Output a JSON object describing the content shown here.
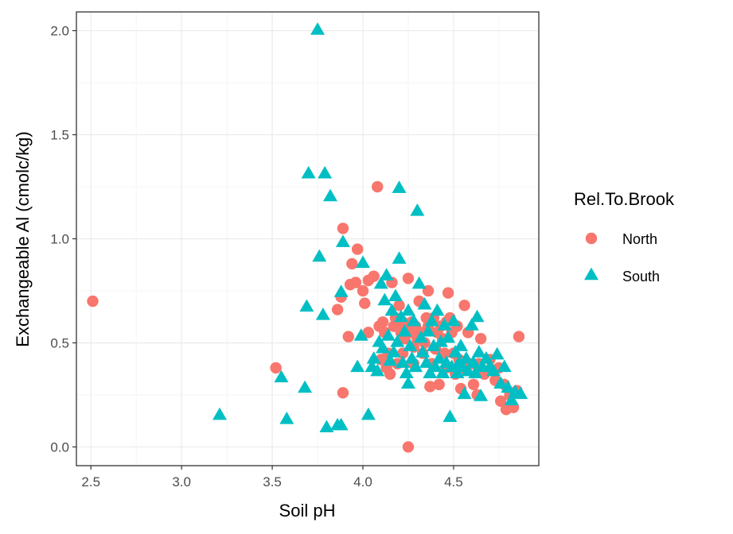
{
  "chart_data": {
    "type": "scatter",
    "title": "",
    "xlabel": "Soil pH",
    "ylabel": "Exchangeable Al (cmolc/kg)",
    "xlim": [
      2.42,
      4.97
    ],
    "ylim": [
      -0.09,
      2.09
    ],
    "xticks": [
      "2.5",
      "3.0",
      "3.5",
      "4.0",
      "4.5"
    ],
    "yticks": [
      "0.0",
      "0.5",
      "1.0",
      "1.5",
      "2.0"
    ],
    "grid": true,
    "legend": {
      "title": "Rel.To.Brook",
      "position": "right"
    },
    "series": [
      {
        "name": "North",
        "marker": "circle",
        "color": "#F8766D",
        "points": [
          [
            2.51,
            0.7
          ],
          [
            3.52,
            0.38
          ],
          [
            3.86,
            0.66
          ],
          [
            3.88,
            0.72
          ],
          [
            3.89,
            1.05
          ],
          [
            3.89,
            0.26
          ],
          [
            3.92,
            0.53
          ],
          [
            3.93,
            0.78
          ],
          [
            3.94,
            0.88
          ],
          [
            3.96,
            0.79
          ],
          [
            3.97,
            0.95
          ],
          [
            4.0,
            0.75
          ],
          [
            4.01,
            0.69
          ],
          [
            4.03,
            0.55
          ],
          [
            4.03,
            0.8
          ],
          [
            4.06,
            0.82
          ],
          [
            4.08,
            1.25
          ],
          [
            4.09,
            0.58
          ],
          [
            4.1,
            0.42
          ],
          [
            4.11,
            0.6
          ],
          [
            4.12,
            0.55
          ],
          [
            4.13,
            0.38
          ],
          [
            4.14,
            0.45
          ],
          [
            4.15,
            0.35
          ],
          [
            4.16,
            0.79
          ],
          [
            4.17,
            0.58
          ],
          [
            4.18,
            0.62
          ],
          [
            4.19,
            0.4
          ],
          [
            4.2,
            0.68
          ],
          [
            4.21,
            0.55
          ],
          [
            4.22,
            0.45
          ],
          [
            4.22,
            0.6
          ],
          [
            4.23,
            0.52
          ],
          [
            4.24,
            0.58
          ],
          [
            4.25,
            0.81
          ],
          [
            4.25,
            0.0
          ],
          [
            4.26,
            0.55
          ],
          [
            4.27,
            0.6
          ],
          [
            4.28,
            0.48
          ],
          [
            4.28,
            0.4
          ],
          [
            4.29,
            0.58
          ],
          [
            4.3,
            0.52
          ],
          [
            4.31,
            0.7
          ],
          [
            4.32,
            0.55
          ],
          [
            4.33,
            0.45
          ],
          [
            4.34,
            0.5
          ],
          [
            4.35,
            0.62
          ],
          [
            4.36,
            0.58
          ],
          [
            4.36,
            0.75
          ],
          [
            4.37,
            0.29
          ],
          [
            4.38,
            0.4
          ],
          [
            4.39,
            0.62
          ],
          [
            4.4,
            0.47
          ],
          [
            4.41,
            0.55
          ],
          [
            4.42,
            0.3
          ],
          [
            4.43,
            0.58
          ],
          [
            4.44,
            0.52
          ],
          [
            4.45,
            0.45
          ],
          [
            4.46,
            0.38
          ],
          [
            4.46,
            0.6
          ],
          [
            4.47,
            0.74
          ],
          [
            4.48,
            0.62
          ],
          [
            4.49,
            0.55
          ],
          [
            4.5,
            0.45
          ],
          [
            4.51,
            0.35
          ],
          [
            4.52,
            0.58
          ],
          [
            4.53,
            0.42
          ],
          [
            4.54,
            0.28
          ],
          [
            4.55,
            0.38
          ],
          [
            4.56,
            0.68
          ],
          [
            4.58,
            0.55
          ],
          [
            4.6,
            0.4
          ],
          [
            4.61,
            0.3
          ],
          [
            4.63,
            0.25
          ],
          [
            4.64,
            0.4
          ],
          [
            4.65,
            0.52
          ],
          [
            4.67,
            0.35
          ],
          [
            4.7,
            0.42
          ],
          [
            4.73,
            0.32
          ],
          [
            4.75,
            0.38
          ],
          [
            4.76,
            0.22
          ],
          [
            4.78,
            0.3
          ],
          [
            4.79,
            0.18
          ],
          [
            4.81,
            0.25
          ],
          [
            4.83,
            0.19
          ],
          [
            4.85,
            0.27
          ],
          [
            4.86,
            0.53
          ]
        ]
      },
      {
        "name": "South",
        "marker": "triangle",
        "color": "#00BFC4",
        "points": [
          [
            3.21,
            0.15
          ],
          [
            3.55,
            0.33
          ],
          [
            3.58,
            0.13
          ],
          [
            3.68,
            0.28
          ],
          [
            3.69,
            0.67
          ],
          [
            3.7,
            1.31
          ],
          [
            3.75,
            2.0
          ],
          [
            3.76,
            0.91
          ],
          [
            3.78,
            0.63
          ],
          [
            3.79,
            1.31
          ],
          [
            3.8,
            0.09
          ],
          [
            3.82,
            1.2
          ],
          [
            3.86,
            0.1
          ],
          [
            3.88,
            0.1
          ],
          [
            3.88,
            0.74
          ],
          [
            3.89,
            0.98
          ],
          [
            3.97,
            0.38
          ],
          [
            3.99,
            0.53
          ],
          [
            4.0,
            0.88
          ],
          [
            4.03,
            0.15
          ],
          [
            4.05,
            0.38
          ],
          [
            4.06,
            0.42
          ],
          [
            4.08,
            0.36
          ],
          [
            4.09,
            0.5
          ],
          [
            4.1,
            0.78
          ],
          [
            4.11,
            0.47
          ],
          [
            4.12,
            0.7
          ],
          [
            4.13,
            0.82
          ],
          [
            4.14,
            0.53
          ],
          [
            4.15,
            0.41
          ],
          [
            4.16,
            0.65
          ],
          [
            4.17,
            0.45
          ],
          [
            4.18,
            0.72
          ],
          [
            4.19,
            0.5
          ],
          [
            4.2,
            0.9
          ],
          [
            4.2,
            1.24
          ],
          [
            4.21,
            0.62
          ],
          [
            4.22,
            0.4
          ],
          [
            4.23,
            0.55
          ],
          [
            4.24,
            0.35
          ],
          [
            4.25,
            0.65
          ],
          [
            4.25,
            0.3
          ],
          [
            4.26,
            0.48
          ],
          [
            4.27,
            0.42
          ],
          [
            4.28,
            0.6
          ],
          [
            4.29,
            0.38
          ],
          [
            4.3,
            1.13
          ],
          [
            4.31,
            0.78
          ],
          [
            4.32,
            0.52
          ],
          [
            4.33,
            0.45
          ],
          [
            4.34,
            0.68
          ],
          [
            4.35,
            0.4
          ],
          [
            4.36,
            0.55
          ],
          [
            4.37,
            0.35
          ],
          [
            4.38,
            0.6
          ],
          [
            4.39,
            0.48
          ],
          [
            4.4,
            0.38
          ],
          [
            4.41,
            0.65
          ],
          [
            4.42,
            0.42
          ],
          [
            4.43,
            0.5
          ],
          [
            4.44,
            0.35
          ],
          [
            4.45,
            0.58
          ],
          [
            4.46,
            0.4
          ],
          [
            4.47,
            0.52
          ],
          [
            4.48,
            0.14
          ],
          [
            4.49,
            0.38
          ],
          [
            4.5,
            0.6
          ],
          [
            4.51,
            0.45
          ],
          [
            4.52,
            0.35
          ],
          [
            4.53,
            0.4
          ],
          [
            4.54,
            0.48
          ],
          [
            4.55,
            0.38
          ],
          [
            4.56,
            0.25
          ],
          [
            4.57,
            0.42
          ],
          [
            4.58,
            0.36
          ],
          [
            4.6,
            0.58
          ],
          [
            4.61,
            0.4
          ],
          [
            4.62,
            0.35
          ],
          [
            4.63,
            0.62
          ],
          [
            4.64,
            0.45
          ],
          [
            4.65,
            0.24
          ],
          [
            4.66,
            0.38
          ],
          [
            4.68,
            0.42
          ],
          [
            4.7,
            0.38
          ],
          [
            4.72,
            0.36
          ],
          [
            4.74,
            0.44
          ],
          [
            4.76,
            0.3
          ],
          [
            4.78,
            0.38
          ],
          [
            4.8,
            0.28
          ],
          [
            4.82,
            0.22
          ],
          [
            4.84,
            0.26
          ],
          [
            4.87,
            0.25
          ]
        ]
      }
    ]
  }
}
